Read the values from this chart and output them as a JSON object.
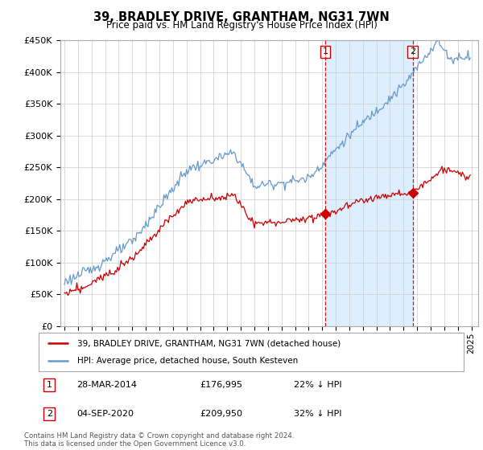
{
  "title": "39, BRADLEY DRIVE, GRANTHAM, NG31 7WN",
  "subtitle": "Price paid vs. HM Land Registry's House Price Index (HPI)",
  "legend_line1": "39, BRADLEY DRIVE, GRANTHAM, NG31 7WN (detached house)",
  "legend_line2": "HPI: Average price, detached house, South Kesteven",
  "footnote": "Contains HM Land Registry data © Crown copyright and database right 2024.\nThis data is licensed under the Open Government Licence v3.0.",
  "point1_date": "28-MAR-2014",
  "point1_price": "£176,995",
  "point1_hpi": "22% ↓ HPI",
  "point1_year": 2014.22,
  "point1_value": 176995,
  "point2_date": "04-SEP-2020",
  "point2_price": "£209,950",
  "point2_hpi": "32% ↓ HPI",
  "point2_year": 2020.67,
  "point2_value": 209950,
  "red_color": "#cc0000",
  "blue_color": "#6699cc",
  "blue_span_color": "#ddeeff",
  "background_color": "#ffffff",
  "grid_color": "#cccccc",
  "ylim": [
    0,
    450000
  ],
  "xlim_start": 1994.7,
  "xlim_end": 2025.5
}
